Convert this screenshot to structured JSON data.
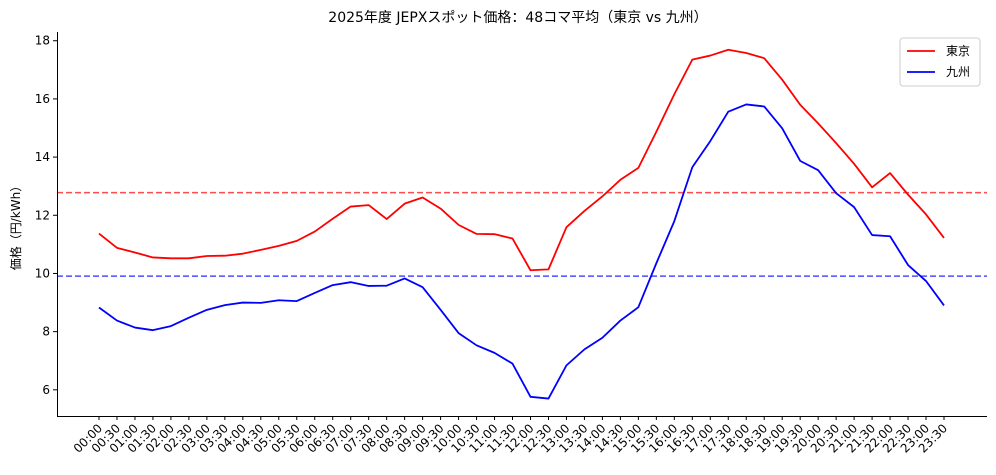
{
  "chart_data": {
    "type": "line",
    "title": "2025年度 JEPXスポット価格：48コマ平均（東京 vs 九州）",
    "xlabel": "",
    "ylabel": "価格（円/kWh）",
    "ylim": [
      5.1,
      18.3
    ],
    "yticks": [
      6,
      8,
      10,
      12,
      14,
      16,
      18
    ],
    "grid": false,
    "legend_position": "top-right",
    "x": [
      "00:00",
      "00:30",
      "01:00",
      "01:30",
      "02:00",
      "02:30",
      "03:00",
      "03:30",
      "04:00",
      "04:30",
      "05:00",
      "05:30",
      "06:00",
      "06:30",
      "07:00",
      "07:30",
      "08:00",
      "08:30",
      "09:00",
      "09:30",
      "10:00",
      "10:30",
      "11:00",
      "11:30",
      "12:00",
      "12:30",
      "13:00",
      "13:30",
      "14:00",
      "14:30",
      "15:00",
      "15:30",
      "16:00",
      "16:30",
      "17:00",
      "17:30",
      "18:00",
      "18:30",
      "19:00",
      "19:30",
      "20:00",
      "20:30",
      "21:00",
      "21:30",
      "22:00",
      "22:30",
      "23:00",
      "23:30"
    ],
    "series": [
      {
        "name": "東京",
        "color": "#ff0000",
        "values": [
          11.37,
          10.88,
          10.72,
          10.55,
          10.52,
          10.52,
          10.6,
          10.61,
          10.68,
          10.81,
          10.95,
          11.12,
          11.44,
          11.88,
          12.3,
          12.35,
          11.87,
          12.4,
          12.61,
          12.23,
          11.67,
          11.36,
          11.35,
          11.2,
          10.11,
          10.14,
          11.59,
          12.15,
          12.65,
          13.22,
          13.63,
          14.87,
          16.16,
          17.35,
          17.49,
          17.69,
          17.58,
          17.4,
          16.66,
          15.8,
          15.16,
          14.48,
          13.77,
          12.96,
          13.45,
          12.71,
          12.03,
          11.22
        ],
        "mean": 12.78
      },
      {
        "name": "九州",
        "color": "#0000ff",
        "values": [
          8.83,
          8.38,
          8.14,
          8.05,
          8.19,
          8.48,
          8.75,
          8.91,
          9.0,
          8.99,
          9.08,
          9.05,
          9.33,
          9.6,
          9.7,
          9.57,
          9.58,
          9.83,
          9.53,
          8.75,
          7.95,
          7.53,
          7.27,
          6.9,
          5.76,
          5.7,
          6.84,
          7.39,
          7.79,
          8.38,
          8.84,
          10.35,
          11.8,
          13.65,
          14.55,
          15.56,
          15.81,
          15.74,
          14.99,
          13.87,
          13.55,
          12.76,
          12.28,
          11.32,
          11.28,
          10.29,
          9.74,
          8.9
        ],
        "mean": 9.91
      }
    ]
  }
}
